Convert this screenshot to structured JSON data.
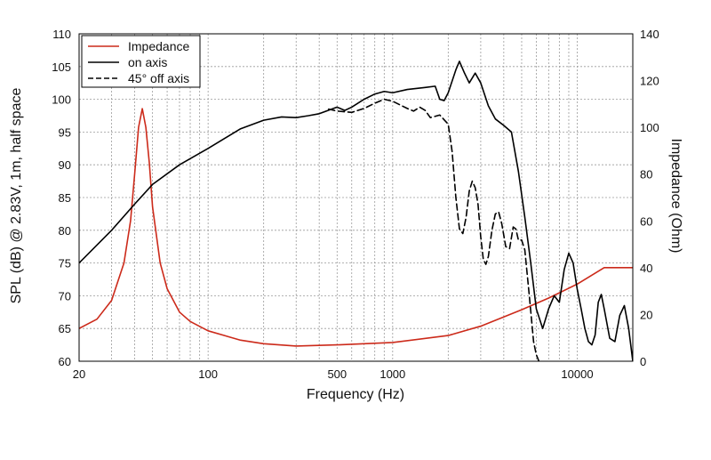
{
  "chart_data": {
    "type": "line",
    "xlabel": "Frequency (Hz)",
    "ylabel_left": "SPL (dB) @ 2.83V, 1m, half space",
    "ylabel_right": "Impedance (Ohm)",
    "x_scale": "log",
    "xlim": [
      20,
      20000
    ],
    "ylim_left": [
      60,
      110
    ],
    "ylim_right": [
      0,
      140
    ],
    "x_tick_labels": [
      "20",
      "100",
      "500",
      "1000",
      "10000"
    ],
    "y_left_ticks": [
      "60",
      "65",
      "70",
      "75",
      "80",
      "85",
      "90",
      "95",
      "100",
      "105",
      "110"
    ],
    "y_right_ticks": [
      "0",
      "20",
      "40",
      "60",
      "80",
      "100",
      "120",
      "140"
    ],
    "grid": true,
    "legend_position": "top-left",
    "colors": {
      "impedance": "#cc2a1a",
      "on_axis": "#000000",
      "off_axis": "#000000"
    },
    "series": [
      {
        "name": "Impedance",
        "axis": "right",
        "style": "solid",
        "points": [
          [
            20,
            14
          ],
          [
            25,
            18
          ],
          [
            30,
            26
          ],
          [
            35,
            42
          ],
          [
            38,
            60
          ],
          [
            40,
            80
          ],
          [
            42,
            100
          ],
          [
            44,
            108
          ],
          [
            46,
            100
          ],
          [
            48,
            85
          ],
          [
            50,
            66
          ],
          [
            55,
            42
          ],
          [
            60,
            31
          ],
          [
            70,
            21
          ],
          [
            80,
            17
          ],
          [
            100,
            13
          ],
          [
            150,
            9
          ],
          [
            200,
            7.5
          ],
          [
            300,
            6.5
          ],
          [
            500,
            7
          ],
          [
            1000,
            8
          ],
          [
            2000,
            11
          ],
          [
            3000,
            15
          ],
          [
            5000,
            22
          ],
          [
            7000,
            27
          ],
          [
            10000,
            33
          ],
          [
            14000,
            40
          ],
          [
            20000,
            40
          ]
        ]
      },
      {
        "name": "on axis",
        "axis": "left",
        "style": "solid",
        "points": [
          [
            20,
            75
          ],
          [
            30,
            80
          ],
          [
            40,
            84
          ],
          [
            50,
            87
          ],
          [
            70,
            90
          ],
          [
            100,
            92.5
          ],
          [
            150,
            95.5
          ],
          [
            200,
            96.8
          ],
          [
            250,
            97.3
          ],
          [
            300,
            97.2
          ],
          [
            350,
            97.5
          ],
          [
            400,
            97.8
          ],
          [
            500,
            98.8
          ],
          [
            550,
            98.3
          ],
          [
            600,
            98.8
          ],
          [
            700,
            100
          ],
          [
            800,
            100.8
          ],
          [
            900,
            101.2
          ],
          [
            1000,
            101
          ],
          [
            1200,
            101.5
          ],
          [
            1500,
            101.8
          ],
          [
            1700,
            102
          ],
          [
            1800,
            100
          ],
          [
            1900,
            99.8
          ],
          [
            2000,
            101
          ],
          [
            2200,
            104.5
          ],
          [
            2300,
            105.8
          ],
          [
            2450,
            104
          ],
          [
            2600,
            102.5
          ],
          [
            2800,
            104
          ],
          [
            3000,
            102.5
          ],
          [
            3300,
            99
          ],
          [
            3600,
            97
          ],
          [
            4000,
            96
          ],
          [
            4400,
            95
          ],
          [
            4800,
            89
          ],
          [
            5200,
            82
          ],
          [
            5600,
            75
          ],
          [
            6000,
            68
          ],
          [
            6500,
            65
          ],
          [
            7000,
            68
          ],
          [
            7500,
            70
          ],
          [
            8000,
            69
          ],
          [
            8500,
            74
          ],
          [
            9000,
            76.5
          ],
          [
            9500,
            75
          ],
          [
            10000,
            71
          ],
          [
            10500,
            68
          ],
          [
            11000,
            65
          ],
          [
            11500,
            63
          ],
          [
            12000,
            62.5
          ],
          [
            12500,
            64
          ],
          [
            13000,
            69
          ],
          [
            13500,
            70.2
          ],
          [
            14000,
            68
          ],
          [
            15000,
            63.5
          ],
          [
            16000,
            63
          ],
          [
            17000,
            67
          ],
          [
            18000,
            68.5
          ],
          [
            19000,
            65
          ],
          [
            20000,
            60
          ]
        ]
      },
      {
        "name": "45° off axis",
        "axis": "left",
        "style": "dashed",
        "points": [
          [
            450,
            98.5
          ],
          [
            500,
            98.2
          ],
          [
            600,
            98.0
          ],
          [
            700,
            98.6
          ],
          [
            800,
            99.4
          ],
          [
            900,
            100
          ],
          [
            1000,
            99.7
          ],
          [
            1200,
            98.6
          ],
          [
            1300,
            98.2
          ],
          [
            1400,
            98.8
          ],
          [
            1500,
            98.3
          ],
          [
            1600,
            97.2
          ],
          [
            1800,
            97.6
          ],
          [
            2000,
            96.2
          ],
          [
            2100,
            92
          ],
          [
            2200,
            85
          ],
          [
            2300,
            80.2
          ],
          [
            2400,
            79.5
          ],
          [
            2500,
            82
          ],
          [
            2600,
            86
          ],
          [
            2700,
            87.5
          ],
          [
            2800,
            86.5
          ],
          [
            2900,
            84
          ],
          [
            3000,
            79
          ],
          [
            3100,
            75.5
          ],
          [
            3200,
            74.8
          ],
          [
            3300,
            76
          ],
          [
            3450,
            80
          ],
          [
            3600,
            82.5
          ],
          [
            3750,
            82.8
          ],
          [
            3900,
            81
          ],
          [
            4100,
            77.5
          ],
          [
            4300,
            77.2
          ],
          [
            4500,
            80.5
          ],
          [
            4650,
            80.2
          ],
          [
            4800,
            78.5
          ],
          [
            5000,
            78.5
          ],
          [
            5200,
            77
          ],
          [
            5500,
            70
          ],
          [
            5800,
            63
          ],
          [
            6000,
            61
          ],
          [
            6200,
            60
          ]
        ]
      }
    ]
  }
}
